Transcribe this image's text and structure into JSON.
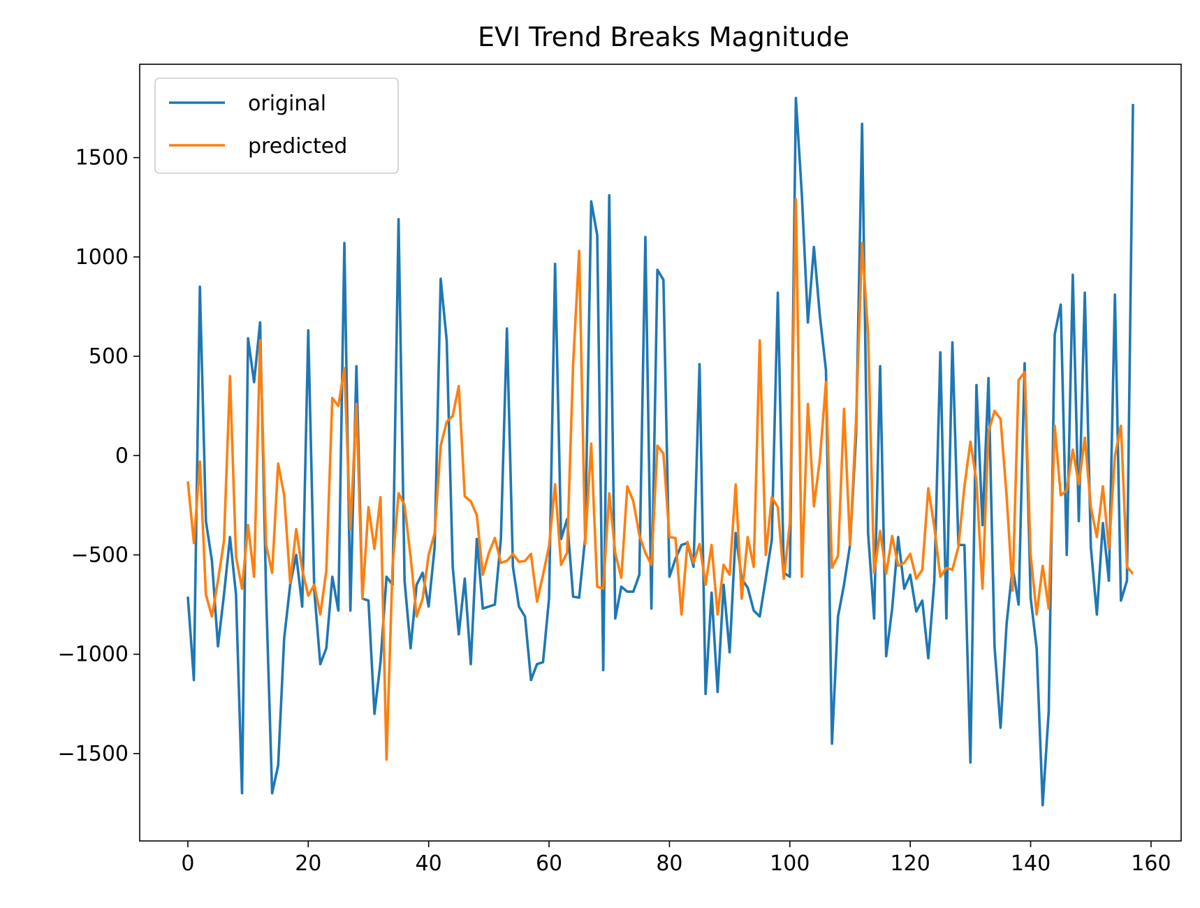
{
  "chart_data": {
    "type": "line",
    "title": "EVI Trend Breaks Magnitude",
    "xlabel": "",
    "ylabel": "",
    "xlim": [
      -8,
      165
    ],
    "ylim": [
      -1940,
      1970
    ],
    "xticks": [
      0,
      20,
      40,
      60,
      80,
      100,
      120,
      140,
      160
    ],
    "yticks": [
      -1500,
      -1000,
      -500,
      0,
      500,
      1000,
      1500
    ],
    "xtick_labels": [
      "0",
      "20",
      "40",
      "60",
      "80",
      "100",
      "120",
      "140",
      "160"
    ],
    "ytick_labels": [
      "−1500",
      "−1000",
      "−500",
      "0",
      "500",
      "1000",
      "1500"
    ],
    "legend_position": "upper-left",
    "grid": false,
    "series": [
      {
        "name": "original",
        "color": "#1f77b4",
        "values": [
          -710,
          -1130,
          850,
          -330,
          -530,
          -960,
          -700,
          -410,
          -700,
          -1700,
          590,
          370,
          670,
          -700,
          -1700,
          -1560,
          -920,
          -650,
          -500,
          -760,
          630,
          -680,
          -1050,
          -970,
          -610,
          -780,
          1070,
          -780,
          450,
          -720,
          -730,
          -1300,
          -1040,
          -610,
          -650,
          1190,
          -630,
          -970,
          -650,
          -590,
          -760,
          -460,
          890,
          580,
          -560,
          -900,
          -620,
          -1050,
          -420,
          -770,
          -760,
          -750,
          -420,
          640,
          -560,
          -760,
          -810,
          -1130,
          -1050,
          -1040,
          -720,
          965,
          -420,
          -320,
          -710,
          -715,
          -415,
          1280,
          1110,
          -1080,
          1310,
          -820,
          -660,
          -685,
          -685,
          -600,
          1100,
          -770,
          935,
          885,
          -610,
          -520,
          -450,
          -440,
          -560,
          460,
          -1200,
          -690,
          -1190,
          -650,
          -990,
          -390,
          -620,
          -665,
          -780,
          -810,
          -620,
          -425,
          820,
          -590,
          -610,
          1800,
          1310,
          670,
          1050,
          700,
          430,
          -1450,
          -810,
          -650,
          -450,
          100,
          1670,
          -390,
          -820,
          450,
          -1010,
          -770,
          -410,
          -670,
          -600,
          -785,
          -730,
          -1020,
          -630,
          520,
          -820,
          570,
          -450,
          -450,
          -1545,
          355,
          -350,
          390,
          -960,
          -1370,
          -850,
          -560,
          -750,
          465,
          -715,
          -970,
          -1760,
          -1290,
          610,
          760,
          -500,
          910,
          -330,
          820,
          -460,
          -800,
          -340,
          -630,
          810,
          -730,
          -630,
          1770
        ]
      },
      {
        "name": "predicted",
        "color": "#ff7f0e",
        "values": [
          -130,
          -440,
          -30,
          -700,
          -810,
          -630,
          -430,
          400,
          -510,
          -670,
          -350,
          -610,
          580,
          -450,
          -590,
          -40,
          -200,
          -640,
          -370,
          -575,
          -705,
          -650,
          -800,
          -580,
          290,
          250,
          440,
          -370,
          260,
          -720,
          -260,
          -470,
          -210,
          -1530,
          -560,
          -190,
          -250,
          -510,
          -810,
          -720,
          -500,
          -390,
          50,
          170,
          200,
          350,
          -205,
          -230,
          -300,
          -600,
          -490,
          -415,
          -540,
          -530,
          -495,
          -535,
          -530,
          -495,
          -735,
          -600,
          -455,
          -145,
          -550,
          -490,
          460,
          1030,
          -445,
          60,
          -660,
          -670,
          -190,
          -490,
          -615,
          -155,
          -230,
          -400,
          -490,
          -550,
          50,
          10,
          -410,
          -415,
          -800,
          -435,
          -540,
          -445,
          -650,
          -450,
          -800,
          -550,
          -600,
          -145,
          -720,
          -410,
          -560,
          580,
          -500,
          -210,
          -260,
          -620,
          -340,
          1290,
          -610,
          260,
          -255,
          -15,
          370,
          -565,
          -505,
          235,
          -450,
          180,
          1070,
          610,
          -590,
          -380,
          -595,
          -405,
          -555,
          -540,
          -495,
          -620,
          -575,
          -165,
          -360,
          -610,
          -565,
          -575,
          -460,
          -155,
          70,
          -130,
          -670,
          120,
          225,
          185,
          -200,
          -680,
          380,
          420,
          -500,
          -800,
          -555,
          -770,
          150,
          -200,
          -175,
          30,
          -145,
          90,
          -260,
          -410,
          -155,
          -470,
          0,
          150,
          -560,
          -595
        ]
      }
    ]
  }
}
